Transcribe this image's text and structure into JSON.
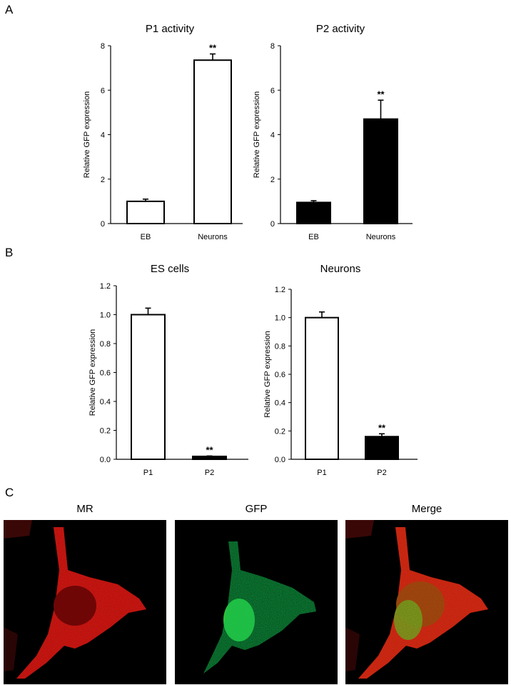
{
  "panels": {
    "a": "A",
    "b": "B",
    "c": "C"
  },
  "chart_data": [
    {
      "type": "bar",
      "title": "P1 activity",
      "ylabel": "Relative GFP expression",
      "xlabel": "",
      "categories": [
        "EB",
        "Neurons"
      ],
      "values": [
        1.0,
        7.35
      ],
      "errors": [
        0.1,
        0.28
      ],
      "significance": [
        "",
        "**"
      ],
      "ylim": [
        0,
        8
      ],
      "yticks": [
        "0",
        "2",
        "4",
        "6",
        "8"
      ],
      "ytick_values": [
        0,
        2,
        4,
        6,
        8
      ],
      "fill": "#ffffff"
    },
    {
      "type": "bar",
      "title": "P2 activity",
      "ylabel": "Relative GFP expression",
      "xlabel": "",
      "categories": [
        "EB",
        "Neurons"
      ],
      "values": [
        0.95,
        4.7
      ],
      "errors": [
        0.08,
        0.85
      ],
      "significance": [
        "",
        "**"
      ],
      "ylim": [
        0,
        8
      ],
      "yticks": [
        "0",
        "2",
        "4",
        "6",
        "8"
      ],
      "ytick_values": [
        0,
        2,
        4,
        6,
        8
      ],
      "fill": "#000000"
    },
    {
      "type": "bar",
      "title": "ES cells",
      "ylabel": "Relative GFP expression",
      "xlabel": "",
      "categories": [
        "P1",
        "P2"
      ],
      "values": [
        1.0,
        0.02
      ],
      "errors": [
        0.045,
        0.003
      ],
      "significance": [
        "",
        "**"
      ],
      "ylim": [
        0,
        1.2
      ],
      "yticks": [
        "0.0",
        "0.2",
        "0.4",
        "0.6",
        "0.8",
        "1.0",
        "1.2"
      ],
      "ytick_values": [
        0,
        0.2,
        0.4,
        0.6,
        0.8,
        1.0,
        1.2
      ],
      "fill": [
        "#ffffff",
        "#000000"
      ]
    },
    {
      "type": "bar",
      "title": "Neurons",
      "ylabel": "Relative GFP expression",
      "xlabel": "",
      "categories": [
        "P1",
        "P2"
      ],
      "values": [
        1.0,
        0.16
      ],
      "errors": [
        0.04,
        0.02
      ],
      "significance": [
        "",
        "**"
      ],
      "ylim": [
        0,
        1.2
      ],
      "yticks": [
        "0.0",
        "0.2",
        "0.4",
        "0.6",
        "0.8",
        "1.0",
        "1.2"
      ],
      "ytick_values": [
        0,
        0.2,
        0.4,
        0.6,
        0.8,
        1.0,
        1.2
      ],
      "fill": [
        "#ffffff",
        "#000000"
      ]
    }
  ],
  "micrographs": [
    {
      "title": "MR",
      "color": "#e0201a"
    },
    {
      "title": "GFP",
      "color": "#2fbf3a"
    },
    {
      "title": "Merge",
      "color": "#e0401a",
      "overlay": "#c8c020"
    }
  ]
}
